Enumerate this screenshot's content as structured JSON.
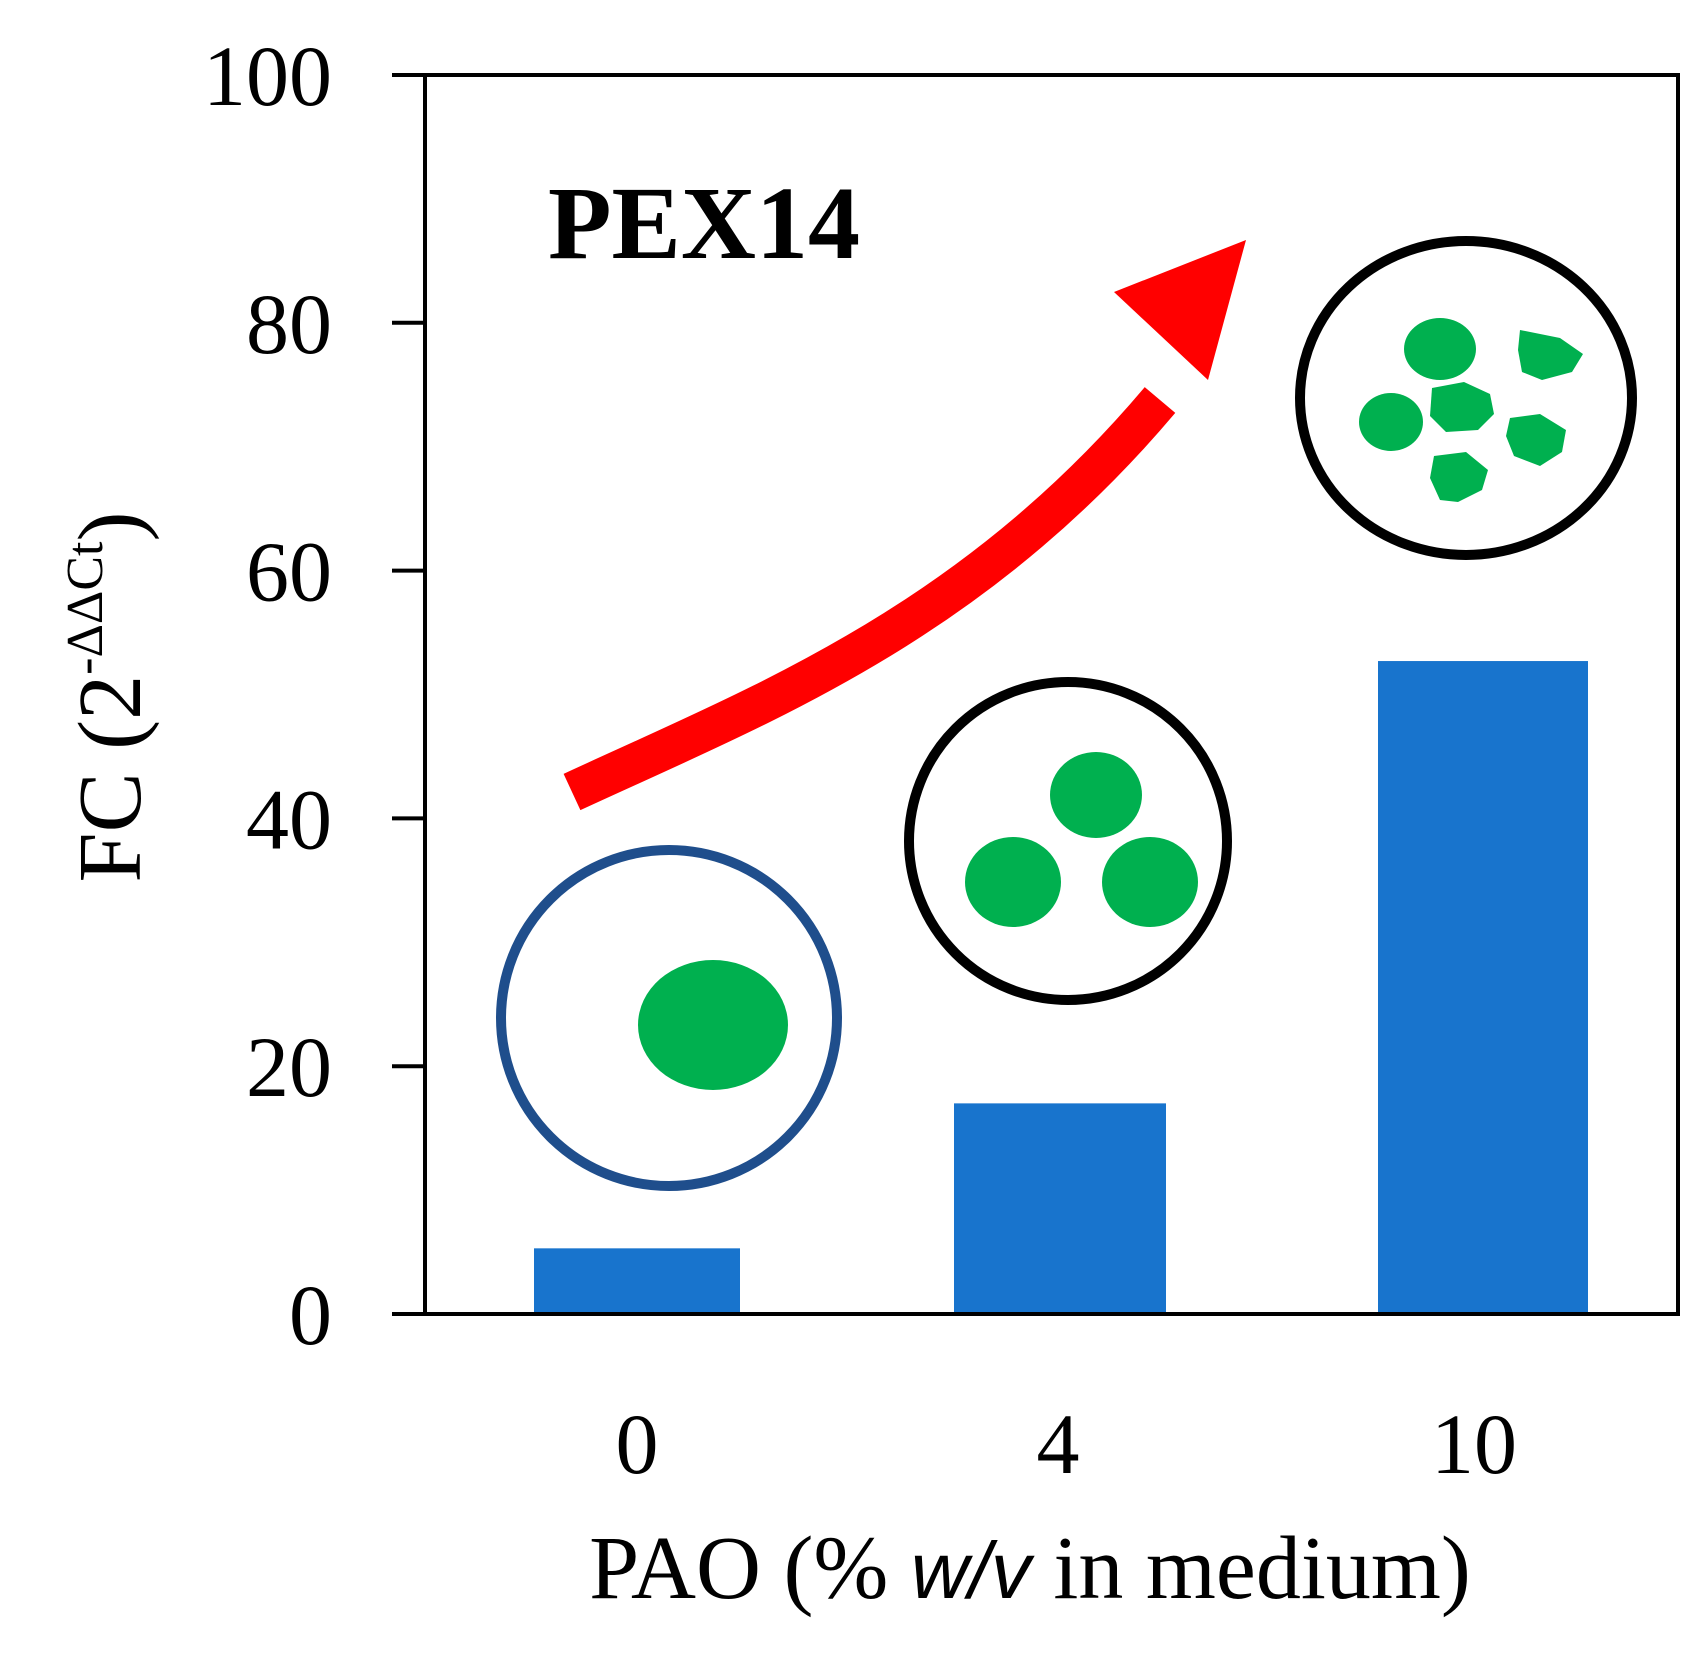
{
  "chart_data": {
    "type": "bar",
    "title": "PEX14",
    "categories": [
      "0",
      "4",
      "10"
    ],
    "values": [
      5.3,
      17,
      52.7
    ],
    "ylabel": {
      "main": "FC (2",
      "superscript": "-ΔΔCt",
      "close": ")"
    },
    "xlabel": {
      "prefix": "PAO (% ",
      "italic": "w/v",
      "suffix": "  in medium)"
    },
    "ylim": [
      0,
      100
    ],
    "yticks": [
      "0",
      "20",
      "40",
      "60",
      "80",
      "100"
    ],
    "grid": false,
    "legend": "none"
  },
  "colors": {
    "bar": "#1874CD",
    "axis": "#000000",
    "arrow": "#FF0000",
    "cell_outline_low": "#1F4E8C",
    "cell_outline_high": "#000000",
    "organelle": "#00B04F"
  },
  "annotations": {
    "trend_arrow": "increasing-trend-arrow",
    "cells": [
      "cell-one-large-organelle",
      "cell-three-organelles",
      "cell-six-small-organelles"
    ]
  }
}
